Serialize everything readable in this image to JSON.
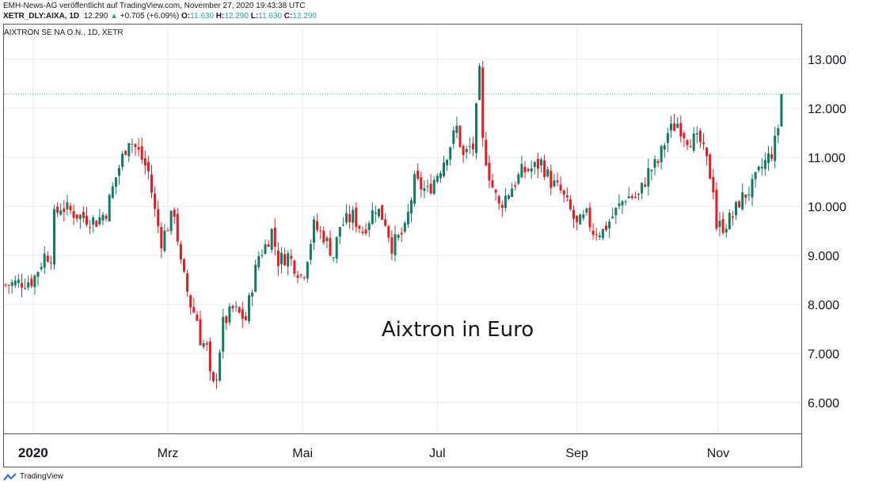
{
  "header": {
    "published": "EMH-News-AG veröffentlicht auf TradingView.com, November 27, 2020 19:43:38 UTC",
    "symbol": "XETR_DLY:AIXA, 1D",
    "last": "12.290",
    "change": "+0.705 (+6.09%)",
    "o_label": "O:",
    "o": "11.630",
    "h_label": "H:",
    "h": "12.290",
    "l_label": "L:",
    "l": "11.630",
    "c_label": "C:",
    "c": "12.290"
  },
  "legend": "AIXTRON SE NA O.N., 1D, XETR",
  "watermark": "Aixtron in Euro",
  "footer": {
    "brand": "TradingView"
  },
  "colors": {
    "up": "#137a63",
    "down": "#e31b23",
    "grid": "#e6edf2",
    "last_line": "#26a69a"
  },
  "chart_data": {
    "type": "candlestick",
    "title": "Aixtron in Euro",
    "ylim": [
      5.4,
      13.7
    ],
    "y_ticks": [
      "6.000",
      "7.000",
      "8.000",
      "9.000",
      "10.000",
      "11.000",
      "12.000",
      "13.000"
    ],
    "y_tick_values": [
      6,
      7,
      8,
      9,
      10,
      11,
      12,
      13
    ],
    "x_ticks": [
      {
        "label": "2020",
        "day": 8.5
      },
      {
        "label": "Mrz",
        "day": 50
      },
      {
        "label": "Mai",
        "day": 91.5
      },
      {
        "label": "Jul",
        "day": 133
      },
      {
        "label": "Sep",
        "day": 176
      },
      {
        "label": "Nov",
        "day": 219.5
      }
    ],
    "num_days": 240,
    "approx_close_by_trading_day": [
      [
        0,
        8.4
      ],
      [
        8.5,
        8.5
      ],
      [
        12,
        9.0
      ],
      [
        14,
        9.0
      ],
      [
        14.2,
        9.7
      ],
      [
        17,
        10.0
      ],
      [
        23,
        9.8
      ],
      [
        28,
        9.7
      ],
      [
        31,
        9.9
      ],
      [
        34,
        10.6
      ],
      [
        36,
        11.0
      ],
      [
        38,
        11.4
      ],
      [
        41,
        11.1
      ],
      [
        44,
        10.7
      ],
      [
        46,
        9.9
      ],
      [
        48,
        9.3
      ],
      [
        50,
        9.6
      ],
      [
        52,
        9.9
      ],
      [
        54,
        8.8
      ],
      [
        57,
        8.0
      ],
      [
        59,
        7.7
      ],
      [
        60,
        7.3
      ],
      [
        62,
        7.1
      ],
      [
        63.5,
        6.2
      ],
      [
        65,
        6.6
      ],
      [
        67,
        7.6
      ],
      [
        70,
        7.9
      ],
      [
        74,
        7.7
      ],
      [
        76,
        8.4
      ],
      [
        78,
        9.0
      ],
      [
        80,
        9.2
      ],
      [
        82,
        9.5
      ],
      [
        84,
        8.9
      ],
      [
        87,
        9.0
      ],
      [
        91,
        8.6
      ],
      [
        92,
        8.7
      ],
      [
        95,
        9.6
      ],
      [
        98,
        9.4
      ],
      [
        101,
        9.0
      ],
      [
        103,
        9.6
      ],
      [
        107,
        9.8
      ],
      [
        110,
        9.5
      ],
      [
        114,
        10.0
      ],
      [
        117,
        9.7
      ],
      [
        119,
        9.2
      ],
      [
        123,
        9.5
      ],
      [
        126,
        10.5
      ],
      [
        130,
        10.3
      ],
      [
        134,
        10.8
      ],
      [
        136,
        11.1
      ],
      [
        139,
        11.6
      ],
      [
        141,
        11.0
      ],
      [
        143,
        11.2
      ],
      [
        144,
        11.2
      ],
      [
        145.5,
        12.3
      ],
      [
        146,
        12.7
      ],
      [
        147,
        11.3
      ],
      [
        149.5,
        10.5
      ],
      [
        152,
        10.0
      ],
      [
        156,
        10.4
      ],
      [
        159,
        10.7
      ],
      [
        163,
        10.8
      ],
      [
        165,
        10.9
      ],
      [
        168,
        10.5
      ],
      [
        171,
        10.3
      ],
      [
        174,
        9.9
      ],
      [
        176,
        9.6
      ],
      [
        179,
        9.8
      ],
      [
        181,
        9.5
      ],
      [
        184,
        9.5
      ],
      [
        187,
        9.8
      ],
      [
        191,
        10.2
      ],
      [
        195,
        10.2
      ],
      [
        198,
        10.7
      ],
      [
        201,
        10.9
      ],
      [
        204,
        11.5
      ],
      [
        207,
        11.7
      ],
      [
        210,
        11.4
      ],
      [
        214,
        11.3
      ],
      [
        216,
        10.9
      ],
      [
        218,
        10.4
      ],
      [
        219,
        9.6
      ],
      [
        221,
        9.6
      ],
      [
        224,
        9.8
      ],
      [
        226,
        10.1
      ],
      [
        230,
        10.4
      ],
      [
        233,
        10.8
      ],
      [
        236,
        11.1
      ],
      [
        237,
        11.3
      ],
      [
        238,
        11.63
      ]
    ],
    "last_candle": {
      "open": 11.63,
      "high": 12.29,
      "low": 11.63,
      "close": 12.29
    },
    "last_price": 12.29
  }
}
